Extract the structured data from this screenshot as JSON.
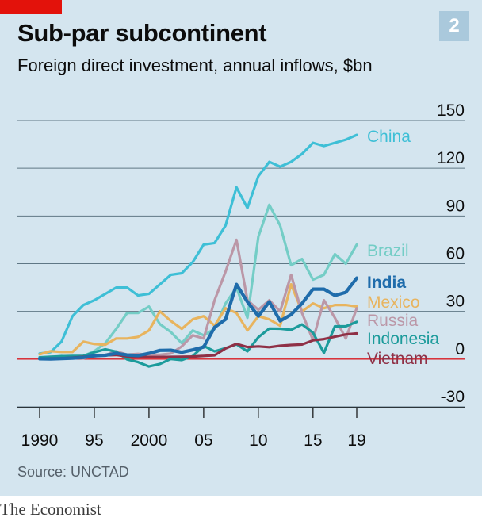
{
  "header": {
    "title": "Sub-par subcontinent",
    "subtitle": "Foreign direct investment, annual inflows, $bn",
    "badge": "2"
  },
  "source": "Source: UNCTAD",
  "footer": "The Economist",
  "colors": {
    "panel": "#d4e5ef",
    "accent": "#e3120b",
    "grid": "#5f7785",
    "zero": "#d81b23"
  },
  "chart_data": {
    "type": "line",
    "title": "Sub-par subcontinent",
    "subtitle": "Foreign direct investment, annual inflows, $bn",
    "ylim": [
      -30,
      150
    ],
    "yticks": [
      150,
      120,
      90,
      60,
      30,
      0,
      -30
    ],
    "xlim": [
      1990,
      2019
    ],
    "xticks": [
      1990,
      1995,
      2000,
      2005,
      2010,
      2015,
      2019
    ],
    "xtick_labels": [
      "1990",
      "95",
      "2000",
      "05",
      "10",
      "15",
      "19"
    ],
    "grid": true,
    "x": [
      1990,
      1991,
      1992,
      1993,
      1994,
      1995,
      1996,
      1997,
      1998,
      1999,
      2000,
      2001,
      2002,
      2003,
      2004,
      2005,
      2006,
      2007,
      2008,
      2009,
      2010,
      2011,
      2012,
      2013,
      2014,
      2015,
      2016,
      2017,
      2018,
      2019
    ],
    "series": [
      {
        "name": "China",
        "color": "#3ebfd6",
        "width": 3.2,
        "values": [
          3.5,
          4.4,
          11,
          27,
          34,
          37,
          41,
          45,
          45,
          40,
          41,
          47,
          53,
          54,
          61,
          72,
          73,
          84,
          108,
          95,
          115,
          124,
          121,
          124,
          129,
          136,
          134,
          136,
          138,
          141
        ]
      },
      {
        "name": "Brazil",
        "color": "#74cdc6",
        "width": 3.2,
        "values": [
          1,
          1,
          2,
          1,
          2,
          5,
          10,
          19,
          29,
          29,
          33,
          22,
          17,
          10,
          18,
          15,
          19,
          35,
          45,
          26,
          77,
          97,
          84,
          59,
          63,
          50,
          53,
          66,
          60,
          72
        ]
      },
      {
        "name": "Mexico",
        "color": "#e8b45e",
        "width": 3.2,
        "values": [
          3,
          5,
          4.5,
          4.5,
          11,
          9.5,
          9,
          13,
          13,
          14,
          18,
          30,
          24,
          19,
          25,
          27,
          21,
          32,
          29,
          18,
          27,
          25,
          21,
          47,
          30,
          35,
          32,
          34,
          34,
          33
        ]
      },
      {
        "name": "Russia",
        "color": "#bb97a7",
        "width": 3.2,
        "values": [
          0,
          0,
          1,
          1,
          0.5,
          2,
          2.5,
          4.9,
          2.8,
          3.3,
          2.7,
          2.7,
          3.5,
          8,
          15,
          13,
          37,
          55,
          75,
          37,
          31,
          37,
          30,
          53,
          29,
          12,
          37,
          26,
          13,
          32
        ]
      },
      {
        "name": "Indonesia",
        "color": "#1c9b9b",
        "width": 3.2,
        "values": [
          1.1,
          1.5,
          1.8,
          2,
          2,
          4.3,
          6.2,
          4.7,
          -0.2,
          -1.9,
          -4.6,
          -3,
          0.1,
          -0.6,
          1.9,
          8.3,
          4.9,
          6.9,
          9.3,
          4.9,
          13.8,
          19.2,
          19.1,
          18.4,
          21.8,
          16.6,
          3.9,
          20.6,
          20.6,
          23.4
        ]
      },
      {
        "name": "India",
        "color": "#1f6cab",
        "width": 4.2,
        "values": [
          0.2,
          0.1,
          0.3,
          0.6,
          1,
          2.1,
          2.4,
          3.6,
          2.6,
          2.2,
          3.6,
          5.5,
          5.6,
          4.3,
          5.8,
          7.6,
          20,
          25,
          47,
          36,
          27,
          36,
          24,
          28,
          35,
          44,
          44,
          40,
          42,
          51
        ]
      },
      {
        "name": "Vietnam",
        "color": "#8f3046",
        "width": 3.2,
        "values": [
          0.2,
          0.4,
          0.5,
          0.9,
          1.4,
          1.8,
          2.4,
          2.6,
          1.7,
          1.5,
          1.3,
          1.3,
          1.4,
          1.5,
          1.6,
          2,
          2.4,
          6.7,
          9.6,
          7.6,
          8,
          7.5,
          8.4,
          8.9,
          9.2,
          11.8,
          12.6,
          14.1,
          15.5,
          16.1
        ]
      }
    ],
    "labels": [
      {
        "series": "China",
        "text": "China"
      },
      {
        "series": "Brazil",
        "text": "Brazil"
      },
      {
        "series": "India",
        "text": "India"
      },
      {
        "series": "Mexico",
        "text": "Mexico"
      },
      {
        "series": "Russia",
        "text": "Russia"
      },
      {
        "series": "Indonesia",
        "text": "Indonesia"
      },
      {
        "series": "Vietnam",
        "text": "Vietnam"
      }
    ]
  }
}
